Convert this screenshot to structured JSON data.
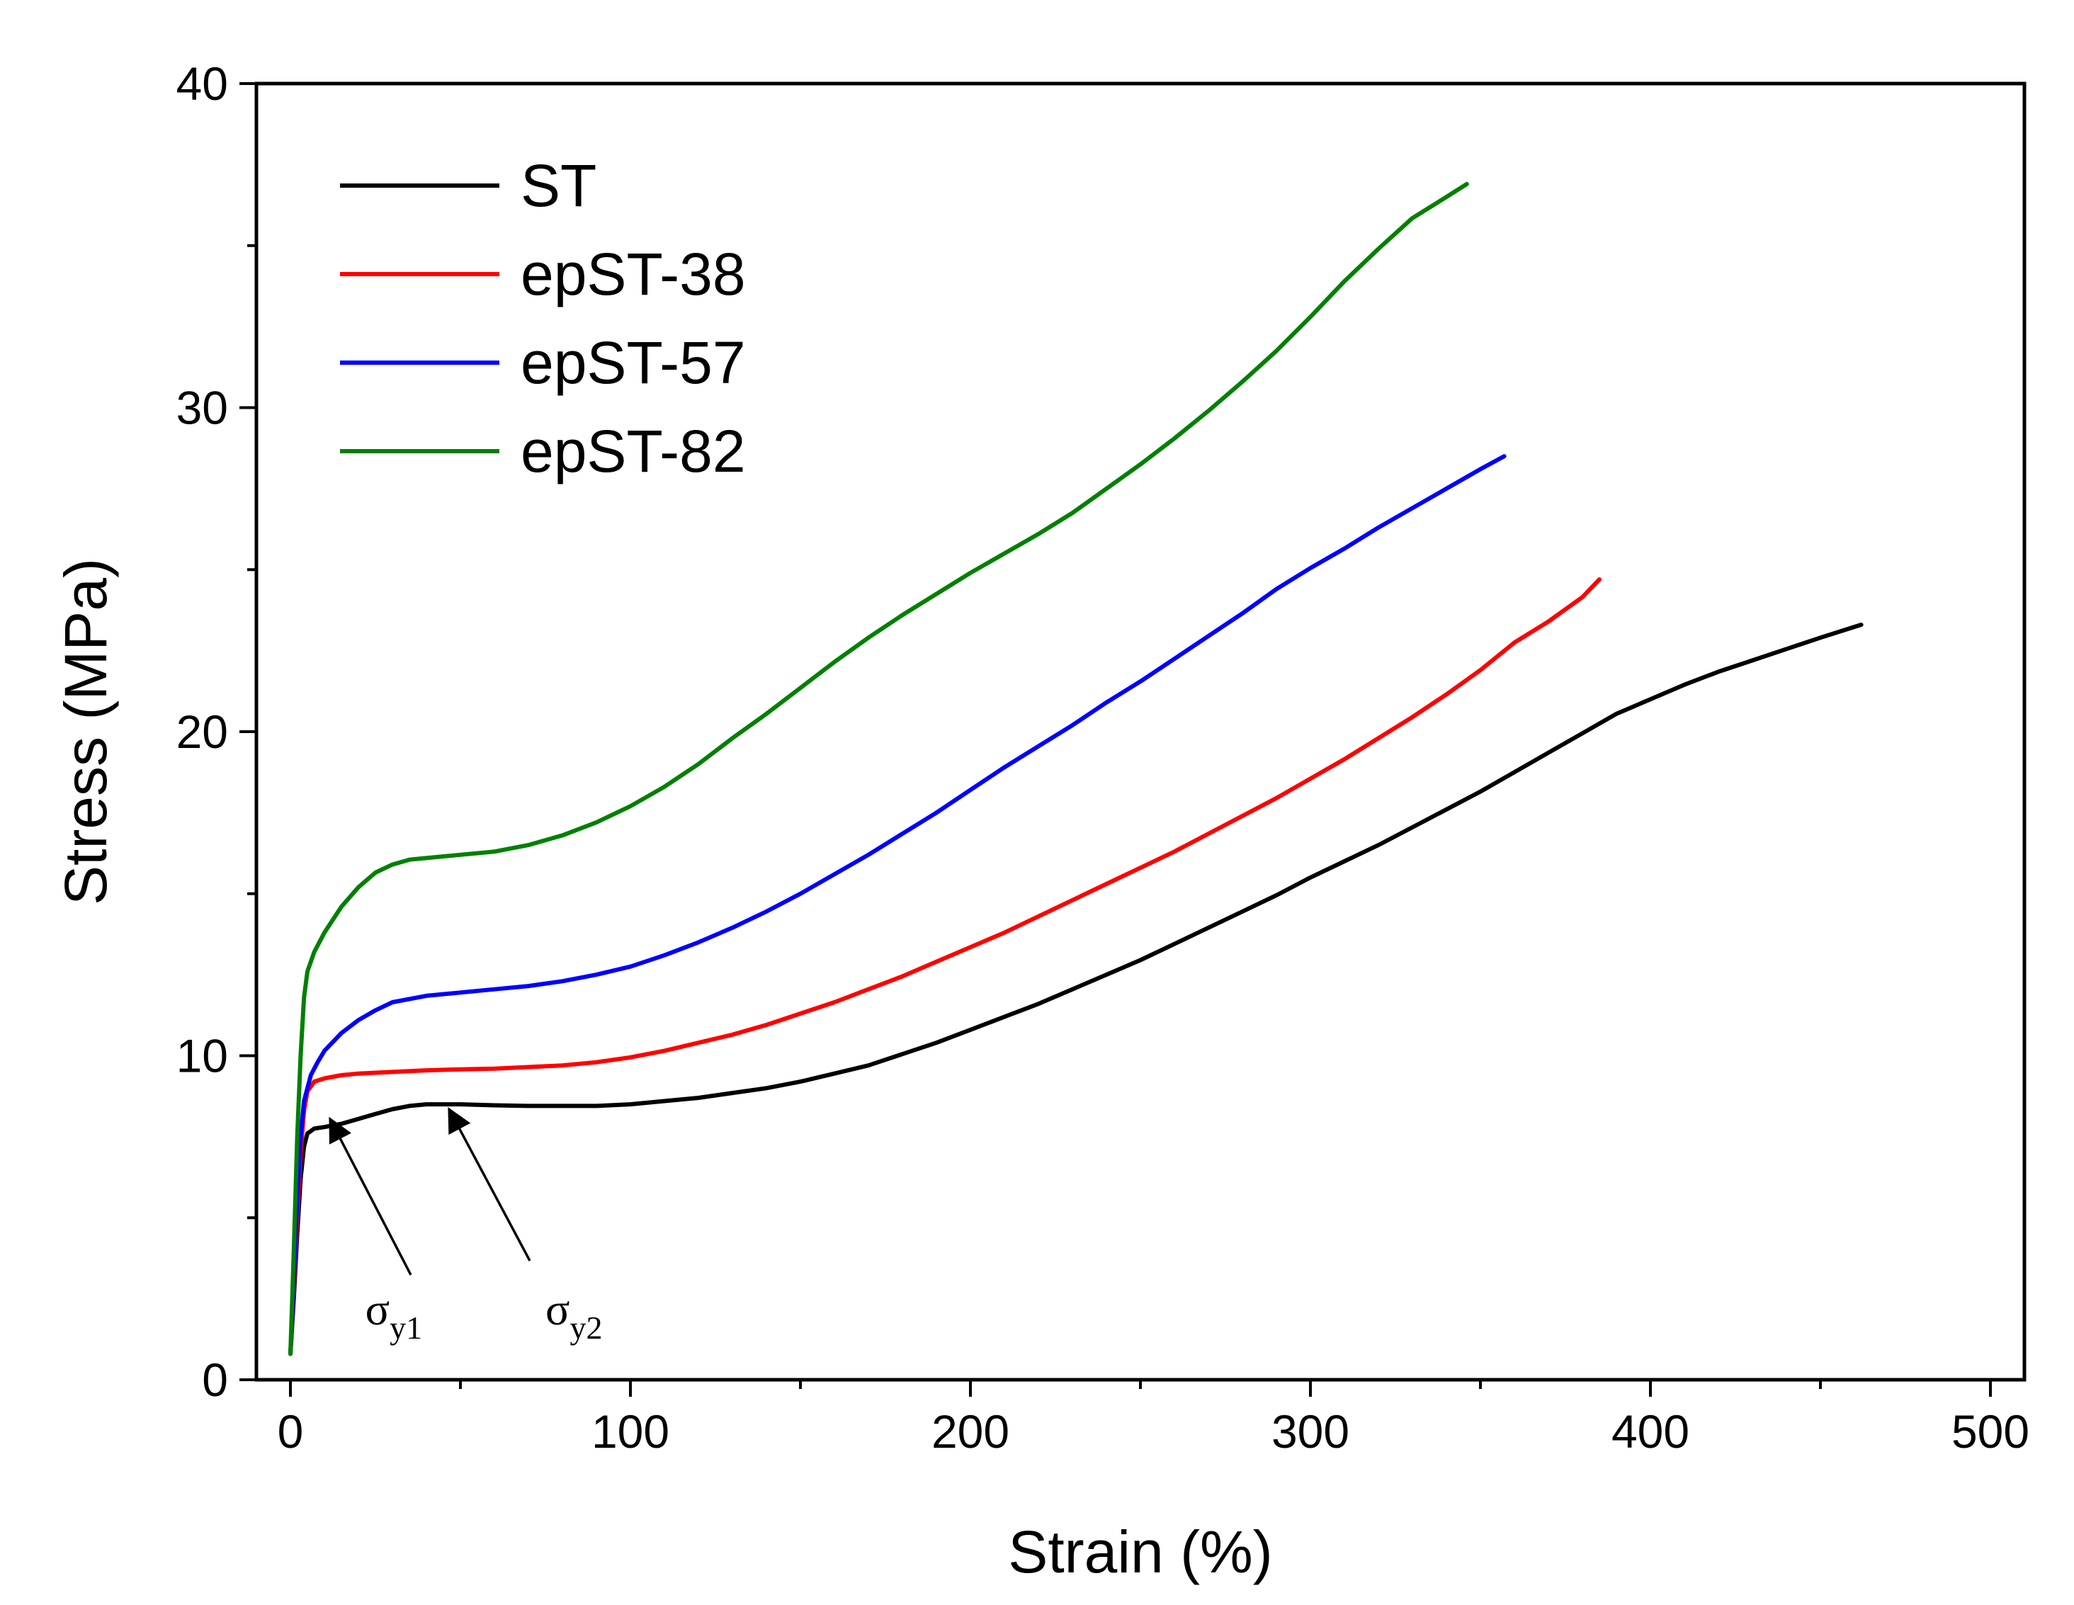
{
  "chart_data": {
    "type": "line",
    "title": "",
    "xlabel": "Strain (%)",
    "ylabel": "Stress (MPa)",
    "xlim": [
      -10,
      510
    ],
    "ylim": [
      0,
      40
    ],
    "x_ticks": [
      0,
      100,
      200,
      300,
      400,
      500
    ],
    "x_tick_labels": [
      "0",
      "100",
      "200",
      "300",
      "400",
      "500"
    ],
    "x_minor_ticks": [
      50,
      150,
      250,
      350,
      450
    ],
    "y_ticks": [
      0,
      10,
      20,
      30,
      40
    ],
    "y_tick_labels": [
      "0",
      "10",
      "20",
      "30",
      "40"
    ],
    "y_minor_ticks": [
      5,
      15,
      25,
      35
    ],
    "legend_position": "top-left",
    "grid": false,
    "series": [
      {
        "name": "ST",
        "color": "#000000",
        "x": [
          0,
          1,
          2,
          3,
          4,
          5,
          7,
          10,
          15,
          20,
          25,
          30,
          35,
          40,
          50,
          60,
          70,
          80,
          90,
          100,
          110,
          120,
          130,
          140,
          150,
          160,
          170,
          180,
          190,
          200,
          210,
          220,
          230,
          240,
          250,
          260,
          270,
          280,
          290,
          300,
          310,
          320,
          330,
          340,
          350,
          360,
          370,
          380,
          390,
          400,
          410,
          420,
          430,
          440,
          450,
          462
        ],
        "y": [
          0.8,
          2.5,
          4.5,
          6.2,
          7.2,
          7.6,
          7.75,
          7.8,
          7.9,
          8.05,
          8.2,
          8.35,
          8.45,
          8.5,
          8.5,
          8.47,
          8.45,
          8.45,
          8.45,
          8.5,
          8.6,
          8.7,
          8.85,
          9.0,
          9.2,
          9.45,
          9.7,
          10.05,
          10.4,
          10.8,
          11.2,
          11.6,
          12.05,
          12.5,
          12.95,
          13.45,
          13.95,
          14.45,
          14.95,
          15.5,
          16.0,
          16.5,
          17.05,
          17.6,
          18.15,
          18.75,
          19.35,
          19.95,
          20.55,
          21.0,
          21.45,
          21.85,
          22.2,
          22.55,
          22.9,
          23.3
        ]
      },
      {
        "name": "epST-38",
        "color": "#ff0000",
        "x": [
          0,
          1,
          2,
          3,
          4,
          5,
          7,
          10,
          15,
          20,
          30,
          40,
          50,
          60,
          70,
          80,
          90,
          100,
          110,
          120,
          130,
          140,
          150,
          160,
          170,
          180,
          190,
          200,
          210,
          220,
          230,
          240,
          250,
          260,
          270,
          280,
          290,
          300,
          310,
          320,
          330,
          340,
          350,
          360,
          370,
          380,
          385
        ],
        "y": [
          0.8,
          2.8,
          5.0,
          7.0,
          8.3,
          8.9,
          9.2,
          9.3,
          9.4,
          9.45,
          9.5,
          9.55,
          9.58,
          9.6,
          9.65,
          9.7,
          9.8,
          9.95,
          10.15,
          10.4,
          10.65,
          10.95,
          11.3,
          11.65,
          12.05,
          12.45,
          12.9,
          13.35,
          13.8,
          14.3,
          14.8,
          15.3,
          15.8,
          16.3,
          16.85,
          17.4,
          17.95,
          18.55,
          19.15,
          19.8,
          20.45,
          21.15,
          21.9,
          22.75,
          23.4,
          24.15,
          24.7
        ]
      },
      {
        "name": "epST-57",
        "color": "#0000ff",
        "x": [
          0,
          1,
          2,
          3,
          4,
          6,
          8,
          10,
          15,
          20,
          25,
          30,
          40,
          50,
          60,
          70,
          80,
          90,
          100,
          110,
          120,
          130,
          140,
          150,
          160,
          170,
          180,
          190,
          200,
          210,
          220,
          230,
          240,
          250,
          260,
          270,
          280,
          290,
          300,
          310,
          320,
          330,
          340,
          350,
          357
        ],
        "y": [
          0.8,
          3.0,
          5.5,
          7.5,
          8.6,
          9.4,
          9.8,
          10.15,
          10.7,
          11.1,
          11.4,
          11.65,
          11.85,
          11.95,
          12.05,
          12.15,
          12.3,
          12.5,
          12.75,
          13.1,
          13.5,
          13.95,
          14.45,
          15.0,
          15.6,
          16.2,
          16.85,
          17.5,
          18.2,
          18.9,
          19.55,
          20.2,
          20.9,
          21.55,
          22.25,
          22.95,
          23.65,
          24.4,
          25.05,
          25.65,
          26.3,
          26.9,
          27.5,
          28.1,
          28.5
        ]
      },
      {
        "name": "epST-82",
        "color": "#008000",
        "x": [
          0,
          1,
          2,
          3,
          4,
          5,
          7,
          10,
          15,
          20,
          25,
          30,
          35,
          40,
          50,
          60,
          70,
          80,
          90,
          100,
          110,
          120,
          130,
          140,
          150,
          160,
          170,
          180,
          190,
          200,
          210,
          220,
          230,
          240,
          250,
          260,
          270,
          280,
          290,
          300,
          310,
          320,
          330,
          340,
          346
        ],
        "y": [
          0.8,
          4.0,
          7.5,
          10.0,
          11.8,
          12.6,
          13.2,
          13.8,
          14.6,
          15.2,
          15.65,
          15.9,
          16.05,
          16.1,
          16.2,
          16.3,
          16.5,
          16.8,
          17.2,
          17.7,
          18.3,
          19.0,
          19.8,
          20.55,
          21.35,
          22.15,
          22.9,
          23.6,
          24.25,
          24.9,
          25.5,
          26.1,
          26.75,
          27.5,
          28.25,
          29.05,
          29.9,
          30.8,
          31.75,
          32.8,
          33.9,
          34.9,
          35.85,
          36.5,
          36.9
        ]
      }
    ],
    "annotations": [
      {
        "symbol": "σ",
        "subscript": "y1",
        "point_x": 10,
        "point_y": 7.5,
        "label_x": 22,
        "label_y": 1.7
      },
      {
        "symbol": "σ",
        "subscript": "y2",
        "point_x": 45,
        "point_y": 7.8,
        "label_x": 75,
        "label_y": 1.7
      }
    ]
  }
}
